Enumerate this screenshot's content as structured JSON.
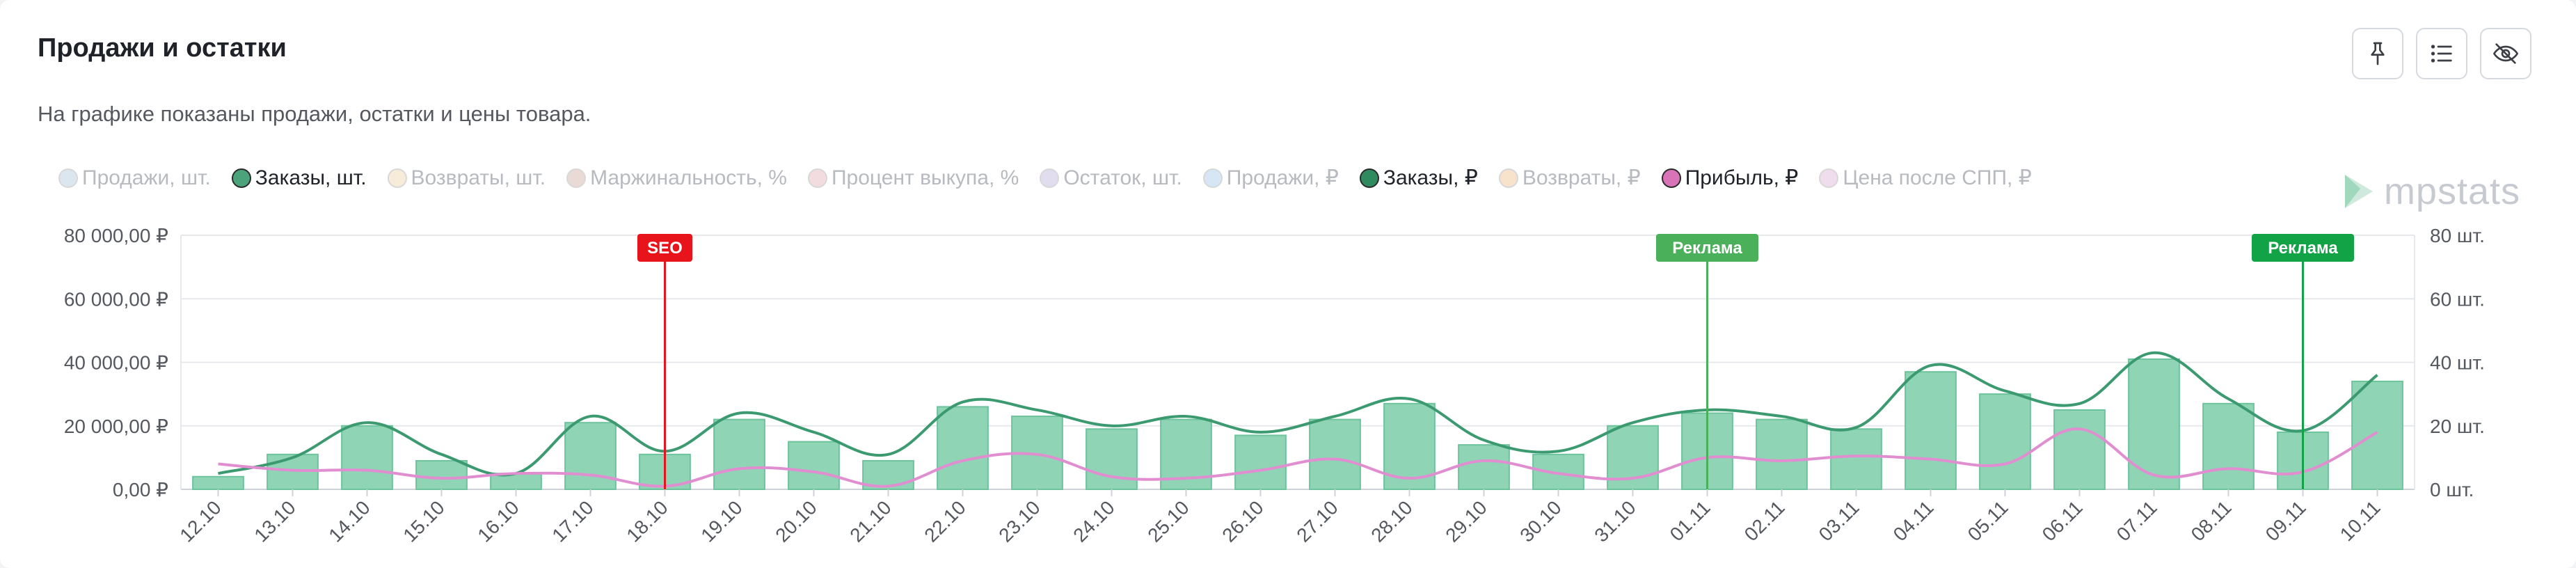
{
  "header": {
    "title": "Продажи и остатки",
    "subtitle": "На графике показаны продажи, остатки и цены товара."
  },
  "toolbar": [
    {
      "name": "pin-icon"
    },
    {
      "name": "list-icon"
    },
    {
      "name": "eye-off-icon"
    }
  ],
  "logo": {
    "text": "mpstats",
    "color": "#c7cbd1"
  },
  "legend": [
    {
      "label": "Продажи, шт.",
      "color": "#dce6ef",
      "active": false
    },
    {
      "label": "Заказы, шт.",
      "color": "#4aa37a",
      "active": true
    },
    {
      "label": "Возвраты, шт.",
      "color": "#f6ecd9",
      "active": false
    },
    {
      "label": "Маржинальность, %",
      "color": "#eadad6",
      "active": false
    },
    {
      "label": "Процент выкупа, %",
      "color": "#f3dcdf",
      "active": false
    },
    {
      "label": "Остаток, шт.",
      "color": "#e2dcef",
      "active": false
    },
    {
      "label": "Продажи, ₽",
      "color": "#d6e6f5",
      "active": false
    },
    {
      "label": "Заказы, ₽",
      "color": "#2f8a60",
      "active": true
    },
    {
      "label": "Возвраты, ₽",
      "color": "#f7e2cc",
      "active": false
    },
    {
      "label": "Прибыль, ₽",
      "color": "#d873b8",
      "active": true
    },
    {
      "label": "Цена после СПП, ₽",
      "color": "#efdcec",
      "active": false
    }
  ],
  "chart_data": {
    "type": "bar",
    "categories": [
      "12.10",
      "13.10",
      "14.10",
      "15.10",
      "16.10",
      "17.10",
      "18.10",
      "19.10",
      "20.10",
      "21.10",
      "22.10",
      "23.10",
      "24.10",
      "25.10",
      "26.10",
      "27.10",
      "28.10",
      "29.10",
      "30.10",
      "31.10",
      "01.11",
      "02.11",
      "03.11",
      "04.11",
      "05.11",
      "06.11",
      "07.11",
      "08.11",
      "09.11",
      "10.11"
    ],
    "y_left": {
      "ticks": [
        "0,00 ₽",
        "20 000,00 ₽",
        "40 000,00 ₽",
        "60 000,00 ₽",
        "80 000,00 ₽"
      ],
      "ylim": [
        0,
        80000
      ]
    },
    "y_right": {
      "ticks": [
        "0 шт.",
        "20 шт.",
        "40 шт.",
        "60 шт.",
        "80 шт."
      ],
      "ylim": [
        0,
        80
      ]
    },
    "series": [
      {
        "name": "Заказы, шт.",
        "type": "bar",
        "axis": "right",
        "color": "#8fd4b4",
        "border": "#6cc39c",
        "values": [
          4,
          11,
          20,
          9,
          5,
          21,
          11,
          22,
          15,
          9,
          26,
          23,
          19,
          22,
          17,
          22,
          27,
          14,
          11,
          20,
          24,
          22,
          19,
          37,
          30,
          25,
          41,
          27,
          18,
          34
        ]
      },
      {
        "name": "Заказы, ₽",
        "type": "line",
        "axis": "left",
        "color": "#3c9a70",
        "values": [
          5000,
          10000,
          21000,
          11000,
          5000,
          23000,
          12000,
          24000,
          18000,
          11000,
          27500,
          25000,
          20000,
          23000,
          18000,
          23000,
          28500,
          15500,
          12000,
          21000,
          25000,
          23000,
          19500,
          39000,
          31000,
          27000,
          43000,
          28500,
          18500,
          36000
        ]
      },
      {
        "name": "Прибыль, ₽",
        "type": "line",
        "axis": "left",
        "color": "#e08ed0",
        "values": [
          8000,
          6000,
          6000,
          3500,
          5000,
          4500,
          1000,
          6500,
          5500,
          1000,
          9000,
          11000,
          4000,
          3500,
          6000,
          9500,
          3500,
          9000,
          5000,
          3500,
          10000,
          9000,
          10500,
          9500,
          8000,
          19000,
          4500,
          6500,
          5500,
          18000
        ]
      }
    ],
    "annotations": [
      {
        "category": "18.10",
        "label": "SEO",
        "color": "#e8141c"
      },
      {
        "category": "01.11",
        "label": "Реклама",
        "color": "#4bb05a"
      },
      {
        "category": "09.11",
        "label": "Реклама",
        "color": "#12a347"
      }
    ],
    "grid": true
  }
}
